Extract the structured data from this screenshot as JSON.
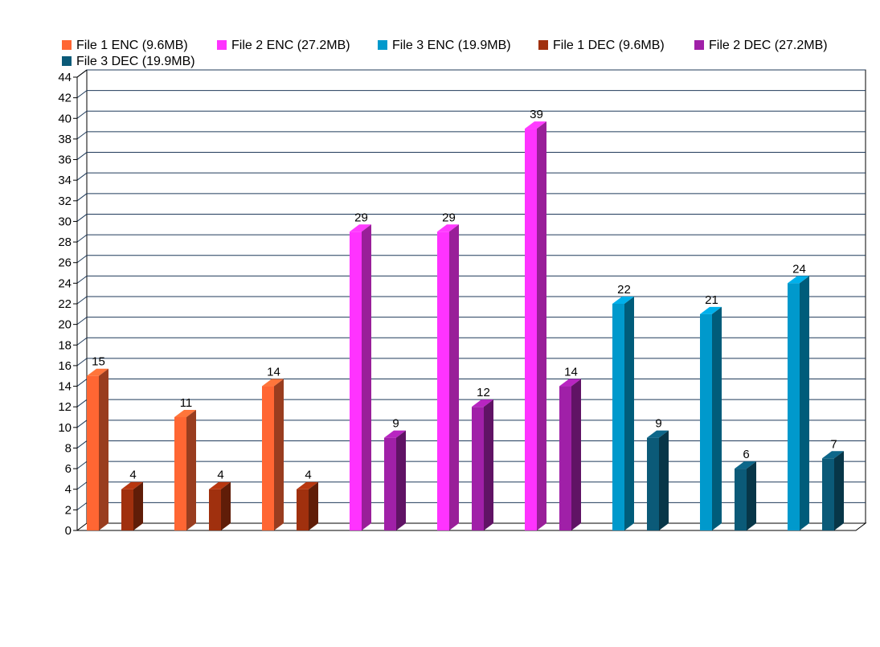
{
  "chart_data": {
    "type": "bar",
    "title": "",
    "xlabel": "",
    "ylabel": "",
    "ylim": [
      0,
      44
    ],
    "y_ticks": [
      0,
      2,
      4,
      6,
      8,
      10,
      12,
      14,
      16,
      18,
      20,
      22,
      24,
      26,
      28,
      30,
      32,
      34,
      36,
      38,
      40,
      42,
      44
    ],
    "grid": "horizontal",
    "legend_position": "top",
    "data_labels": true,
    "style": "3d",
    "categories": [
      "",
      "",
      "",
      "",
      "",
      "",
      "",
      "",
      ""
    ],
    "series": [
      {
        "name": "File 1 ENC (9.6MB)",
        "color": "#ff6633",
        "values": [
          15,
          11,
          14,
          null,
          null,
          null,
          null,
          null,
          null
        ]
      },
      {
        "name": "File 2 ENC (27.2MB)",
        "color": "#ff33ff",
        "values": [
          null,
          null,
          null,
          29,
          29,
          39,
          null,
          null,
          null
        ]
      },
      {
        "name": "File 3 ENC (19.9MB)",
        "color": "#0099cc",
        "values": [
          null,
          null,
          null,
          null,
          null,
          null,
          22,
          21,
          24
        ]
      },
      {
        "name": "File 1 DEC (9.6MB)",
        "color": "#a0300e",
        "values": [
          4,
          4,
          4,
          null,
          null,
          null,
          null,
          null,
          null
        ]
      },
      {
        "name": "File 2 DEC (27.2MB)",
        "color": "#a020a8",
        "values": [
          null,
          null,
          null,
          9,
          12,
          14,
          null,
          null,
          null
        ]
      },
      {
        "name": "File 3 DEC (19.9MB)",
        "color": "#0b5a78",
        "values": [
          null,
          null,
          null,
          null,
          null,
          null,
          9,
          6,
          7
        ]
      }
    ]
  }
}
